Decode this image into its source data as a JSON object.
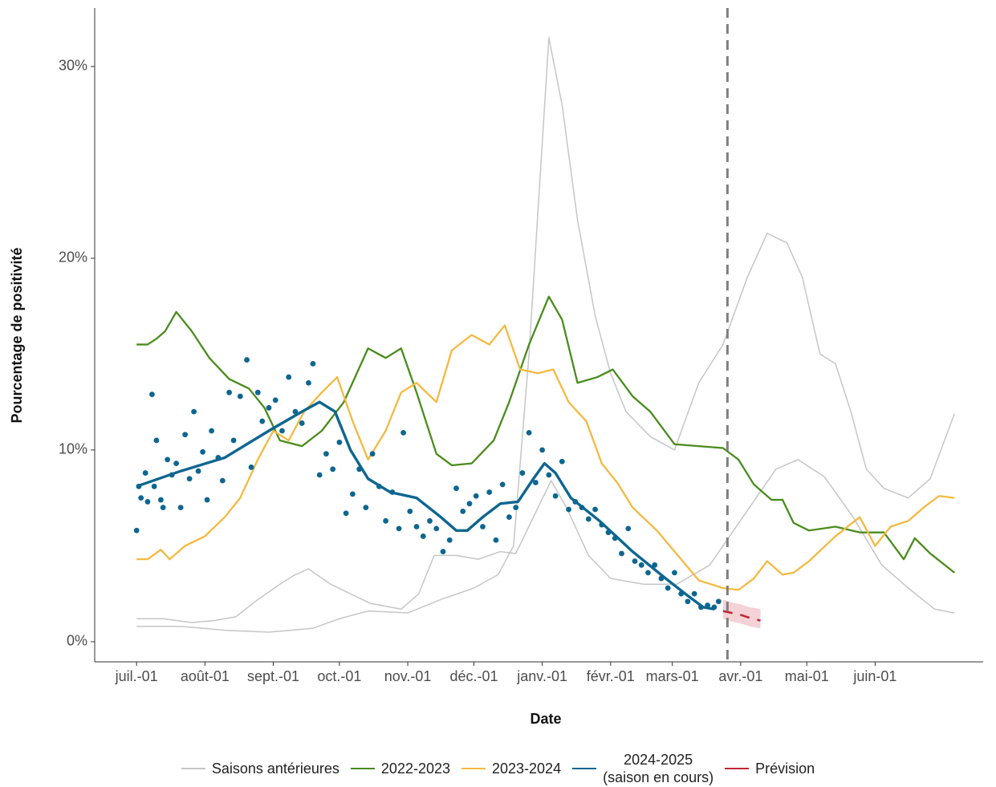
{
  "chart_data": {
    "type": "line",
    "xlabel": "Date",
    "ylabel": "Pourcentage de positivité",
    "xlim": [
      -19,
      384
    ],
    "ylim": [
      -1.05,
      33.05
    ],
    "xticks": [
      {
        "value": 0,
        "label": "juil.-01"
      },
      {
        "value": 31,
        "label": "août-01"
      },
      {
        "value": 62,
        "label": "sept.-01"
      },
      {
        "value": 92,
        "label": "oct.-01"
      },
      {
        "value": 123,
        "label": "nov.-01"
      },
      {
        "value": 153,
        "label": "déc.-01"
      },
      {
        "value": 184,
        "label": "janv.-01"
      },
      {
        "value": 215,
        "label": "févr.-01"
      },
      {
        "value": 243,
        "label": "mars-01"
      },
      {
        "value": 274,
        "label": "avr.-01"
      },
      {
        "value": 304,
        "label": "mai-01"
      },
      {
        "value": 335,
        "label": "juin-01"
      }
    ],
    "yticks": [
      {
        "value": 0,
        "label": "0%"
      },
      {
        "value": 10,
        "label": "10%"
      },
      {
        "value": 20,
        "label": "20%"
      },
      {
        "value": 30,
        "label": "30%"
      }
    ],
    "vline": 268,
    "series": [
      {
        "name": "Saisons antérieures",
        "color": "#c6c6c6",
        "x": [
          0,
          20,
          40,
          60,
          80,
          92,
          105,
          123,
          138,
          153,
          164,
          171,
          178,
          187,
          193,
          200,
          208,
          215,
          222,
          233,
          244,
          255,
          266,
          277,
          286,
          295,
          302,
          310,
          317,
          324,
          331,
          339,
          350,
          360,
          371
        ],
        "values": [
          0.8,
          0.8,
          0.6,
          0.5,
          0.7,
          1.2,
          1.6,
          1.5,
          2.2,
          2.8,
          3.5,
          5,
          15,
          31.5,
          28,
          22,
          17,
          14,
          12,
          10.7,
          10,
          13.5,
          15.5,
          19,
          21.3,
          20.8,
          19,
          15,
          14.5,
          12,
          9,
          8,
          7.5,
          8.5,
          11.9
        ]
      },
      {
        "name": "Saisons antérieures",
        "color": "#c6c6c6",
        "x": [
          0,
          12,
          25,
          35,
          45,
          55,
          65,
          72,
          78,
          88,
          97,
          106,
          120,
          128,
          135,
          145,
          155,
          165,
          172,
          180,
          188,
          195,
          205,
          215,
          230,
          245,
          260,
          275,
          290,
          300,
          312,
          325,
          338,
          350,
          362,
          371
        ],
        "values": [
          1.2,
          1.2,
          1.0,
          1.1,
          1.3,
          2.2,
          3.0,
          3.5,
          3.8,
          3.0,
          2.5,
          2.0,
          1.7,
          2.5,
          4.5,
          4.5,
          4.3,
          4.7,
          4.6,
          6.5,
          8.4,
          7,
          4.5,
          3.3,
          3.0,
          3.0,
          4.0,
          6.5,
          9.0,
          9.5,
          8.6,
          6.5,
          4.0,
          2.8,
          1.7,
          1.5
        ]
      },
      {
        "name": "2022-2023",
        "color": "#4a8c1c",
        "x": [
          0,
          5,
          9,
          13,
          18,
          25,
          33,
          42,
          51,
          58,
          65,
          75,
          84,
          94,
          105,
          113,
          120,
          127,
          136,
          143,
          152,
          162,
          169,
          178,
          187,
          193,
          200,
          209,
          216,
          225,
          233,
          244,
          255,
          266,
          273,
          280,
          288,
          293,
          298,
          305,
          317,
          328,
          339,
          348,
          353,
          360,
          371
        ],
        "values": [
          15.5,
          15.5,
          15.8,
          16.2,
          17.2,
          16.2,
          14.8,
          13.7,
          13.2,
          12.2,
          10.5,
          10.2,
          11,
          12.5,
          15.3,
          14.8,
          15.3,
          13,
          9.8,
          9.2,
          9.3,
          10.5,
          12.5,
          15.5,
          18,
          16.8,
          13.5,
          13.8,
          14.2,
          12.8,
          12,
          10.3,
          10.2,
          10.1,
          9.5,
          8.2,
          7.4,
          7.4,
          6.2,
          5.8,
          6.0,
          5.7,
          5.7,
          4.3,
          5.4,
          4.6,
          3.6
        ]
      },
      {
        "name": "2023-2024",
        "color": "#f5b940",
        "x": [
          0,
          5,
          11,
          15,
          22,
          31,
          40,
          47,
          55,
          62,
          69,
          76,
          84,
          91,
          98,
          105,
          113,
          120,
          127,
          136,
          143,
          152,
          160,
          167,
          174,
          182,
          189,
          196,
          204,
          211,
          218,
          225,
          236,
          247,
          255,
          266,
          273,
          280,
          286,
          293,
          298,
          305,
          317,
          328,
          335,
          342,
          350,
          357,
          364,
          371
        ],
        "values": [
          4.3,
          4.3,
          4.8,
          4.3,
          5,
          5.5,
          6.5,
          7.5,
          9.5,
          11,
          10.5,
          12,
          13,
          13.8,
          11.5,
          9.5,
          11,
          13,
          13.5,
          12.5,
          15.2,
          16,
          15.5,
          16.5,
          14.2,
          14.0,
          14.2,
          12.5,
          11.5,
          9.3,
          8.3,
          7,
          5.8,
          4.3,
          3.2,
          2.8,
          2.7,
          3.3,
          4.2,
          3.5,
          3.6,
          4.2,
          5.5,
          6.5,
          5.0,
          6.0,
          6.3,
          7,
          7.6,
          7.5
        ]
      },
      {
        "name": "2024-2025\n(saison en cours)",
        "color": "#0d6690",
        "x": [
          0,
          20,
          40,
          60,
          75,
          83,
          90,
          97,
          105,
          115,
          127,
          138,
          145,
          150,
          157,
          165,
          173,
          180,
          185,
          190,
          197,
          210,
          225,
          240,
          250,
          257,
          262
        ],
        "values": [
          8.1,
          8.9,
          9.6,
          11,
          12,
          12.5,
          12,
          10,
          8.5,
          7.8,
          7.5,
          6.5,
          5.8,
          5.8,
          6.5,
          7.2,
          7.3,
          8.5,
          9.3,
          8.8,
          7.5,
          6.3,
          4.7,
          3.3,
          2.4,
          1.8,
          1.7
        ],
        "points": {
          "x": [
            0,
            1,
            2,
            4,
            5,
            7,
            8,
            9,
            11,
            12,
            14,
            16,
            18,
            20,
            22,
            24,
            26,
            28,
            30,
            32,
            34,
            37,
            39,
            42,
            44,
            47,
            50,
            52,
            55,
            57,
            60,
            63,
            66,
            69,
            72,
            75,
            78,
            80,
            83,
            86,
            89,
            92,
            95,
            98,
            101,
            104,
            107,
            110,
            113,
            116,
            119,
            121,
            124,
            127,
            130,
            133,
            136,
            139,
            142,
            145,
            148,
            151,
            154,
            157,
            160,
            163,
            166,
            169,
            172,
            175,
            178,
            181,
            184,
            187,
            190,
            193,
            196,
            199,
            202,
            205,
            208,
            211,
            214,
            217,
            220,
            223,
            226,
            229,
            232,
            235,
            238,
            241,
            244,
            247,
            250,
            253,
            256,
            259,
            262,
            264
          ],
          "values": [
            5.8,
            8.1,
            7.5,
            8.8,
            7.3,
            12.9,
            8.1,
            10.5,
            7.4,
            7.0,
            9.5,
            8.7,
            9.3,
            7.0,
            10.8,
            8.5,
            12.0,
            8.9,
            9.9,
            7.4,
            11.0,
            9.6,
            8.4,
            13.0,
            10.5,
            12.8,
            14.7,
            9.1,
            13.0,
            11.5,
            12.2,
            12.6,
            11.0,
            13.8,
            12.0,
            11.4,
            13.5,
            14.5,
            8.7,
            9.8,
            9.0,
            10.4,
            6.7,
            7.7,
            9.0,
            7.0,
            9.8,
            8.1,
            6.3,
            7.8,
            5.9,
            10.9,
            6.8,
            6.0,
            5.5,
            6.3,
            5.9,
            4.7,
            5.3,
            8.0,
            6.8,
            7.2,
            7.6,
            6.0,
            7.8,
            5.3,
            8.2,
            6.5,
            7.0,
            8.8,
            10.9,
            8.3,
            10.0,
            8.7,
            7.6,
            9.4,
            6.9,
            7.3,
            7.0,
            6.4,
            6.9,
            6.1,
            5.7,
            5.4,
            4.6,
            5.9,
            4.2,
            4.0,
            3.6,
            4.0,
            3.3,
            2.8,
            3.6,
            2.5,
            2.1,
            2.5,
            1.8,
            1.9,
            1.8,
            2.1
          ]
        }
      },
      {
        "name": "Prévision",
        "color": "#c0273a",
        "band_color": "#f1c7cc",
        "x": [
          266,
          270,
          274,
          278,
          283
        ],
        "values": [
          1.6,
          1.5,
          1.4,
          1.25,
          1.1
        ],
        "lower": [
          1.2,
          1.05,
          0.95,
          0.8,
          0.7
        ],
        "upper": [
          2.2,
          2.05,
          1.95,
          1.8,
          1.7
        ]
      }
    ]
  }
}
